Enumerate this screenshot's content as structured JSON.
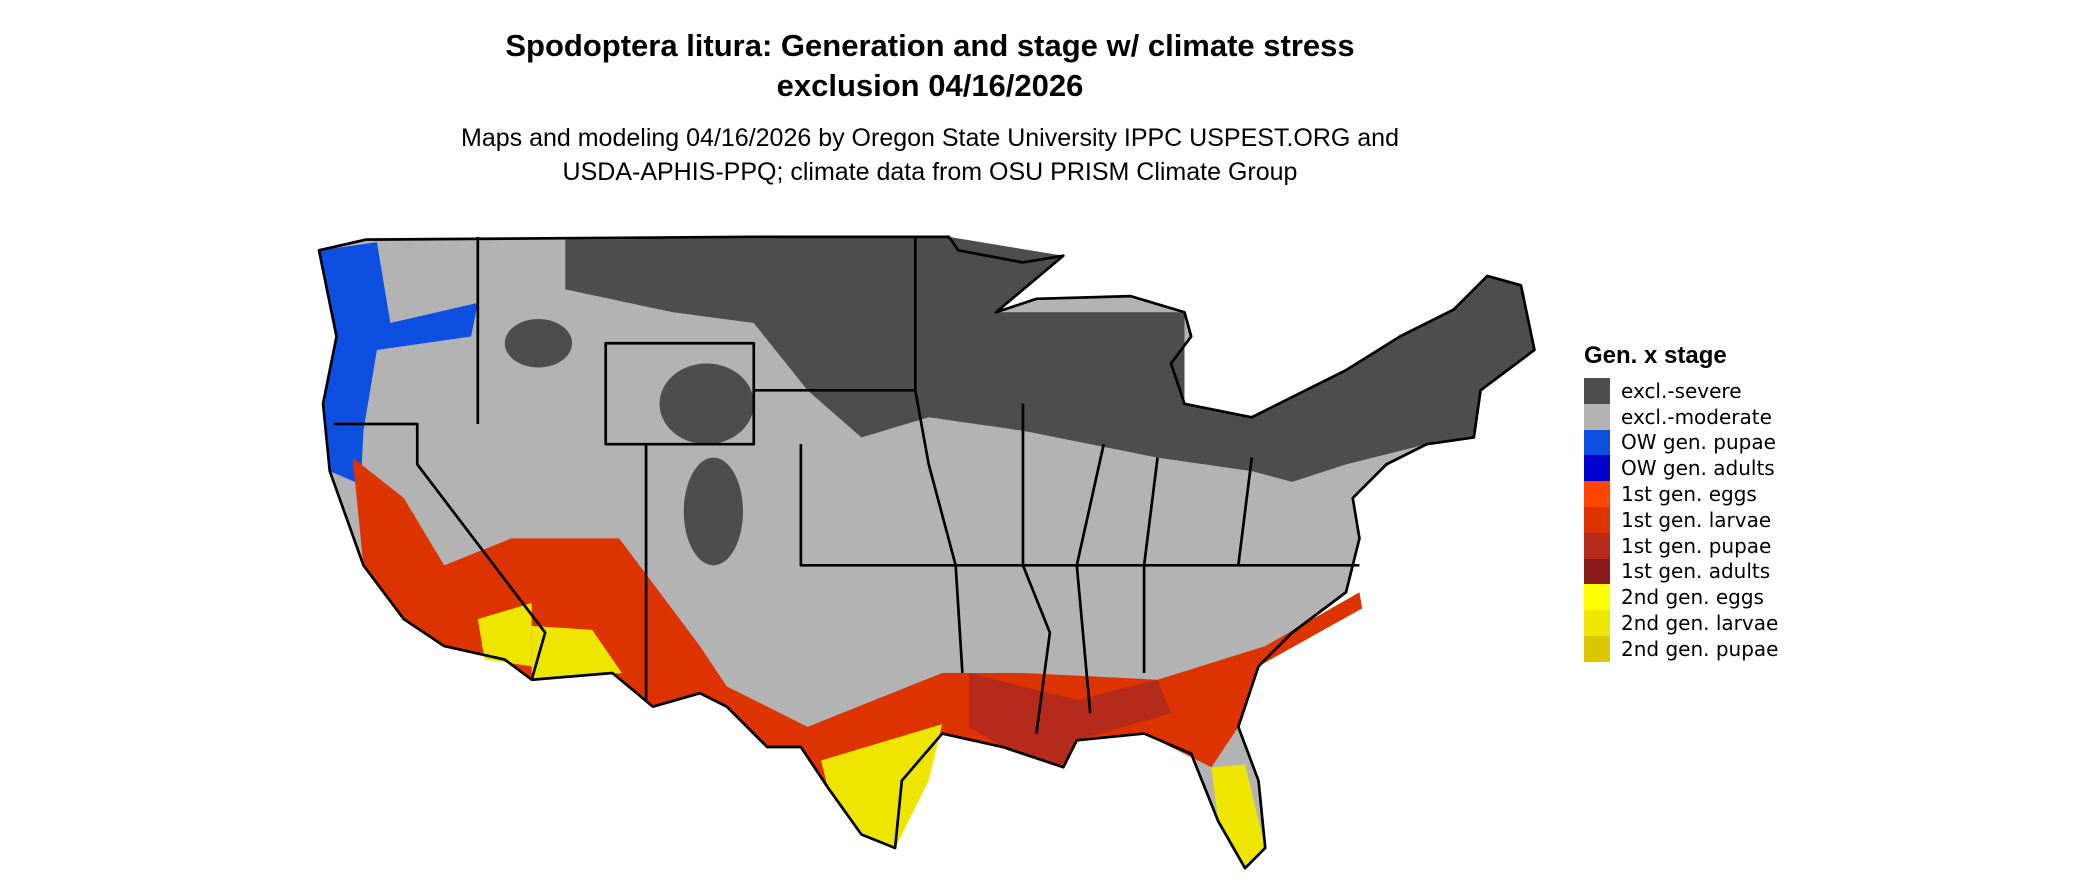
{
  "title": [
    "Spodoptera litura: Generation and stage w/ climate stress",
    "exclusion 04/16/2026"
  ],
  "subtitle": [
    "Maps and modeling 04/16/2026 by Oregon State University IPPC USPEST.ORG and",
    "USDA-APHIS-PPQ; climate data from OSU PRISM Climate Group"
  ],
  "legend": {
    "title": "Gen. x stage",
    "items": [
      {
        "name": "excl.-severe",
        "color": "#4d4d4d"
      },
      {
        "name": "excl.-moderate",
        "color": "#b3b3b3"
      },
      {
        "name": "OW gen. pupae",
        "color": "#0d4fe0"
      },
      {
        "name": "OW gen. adults",
        "color": "#0000cc"
      },
      {
        "name": "1st gen. eggs",
        "color": "#ff4500"
      },
      {
        "name": "1st gen. larvae",
        "color": "#dd3300"
      },
      {
        "name": "1st gen. pupae",
        "color": "#b52a1a"
      },
      {
        "name": "1st gen. adults",
        "color": "#8b1a1a"
      },
      {
        "name": "2nd gen. eggs",
        "color": "#ffff00"
      },
      {
        "name": "2nd gen. larvae",
        "color": "#eee600"
      },
      {
        "name": "2nd gen. pupae",
        "color": "#ddc800"
      }
    ]
  }
}
